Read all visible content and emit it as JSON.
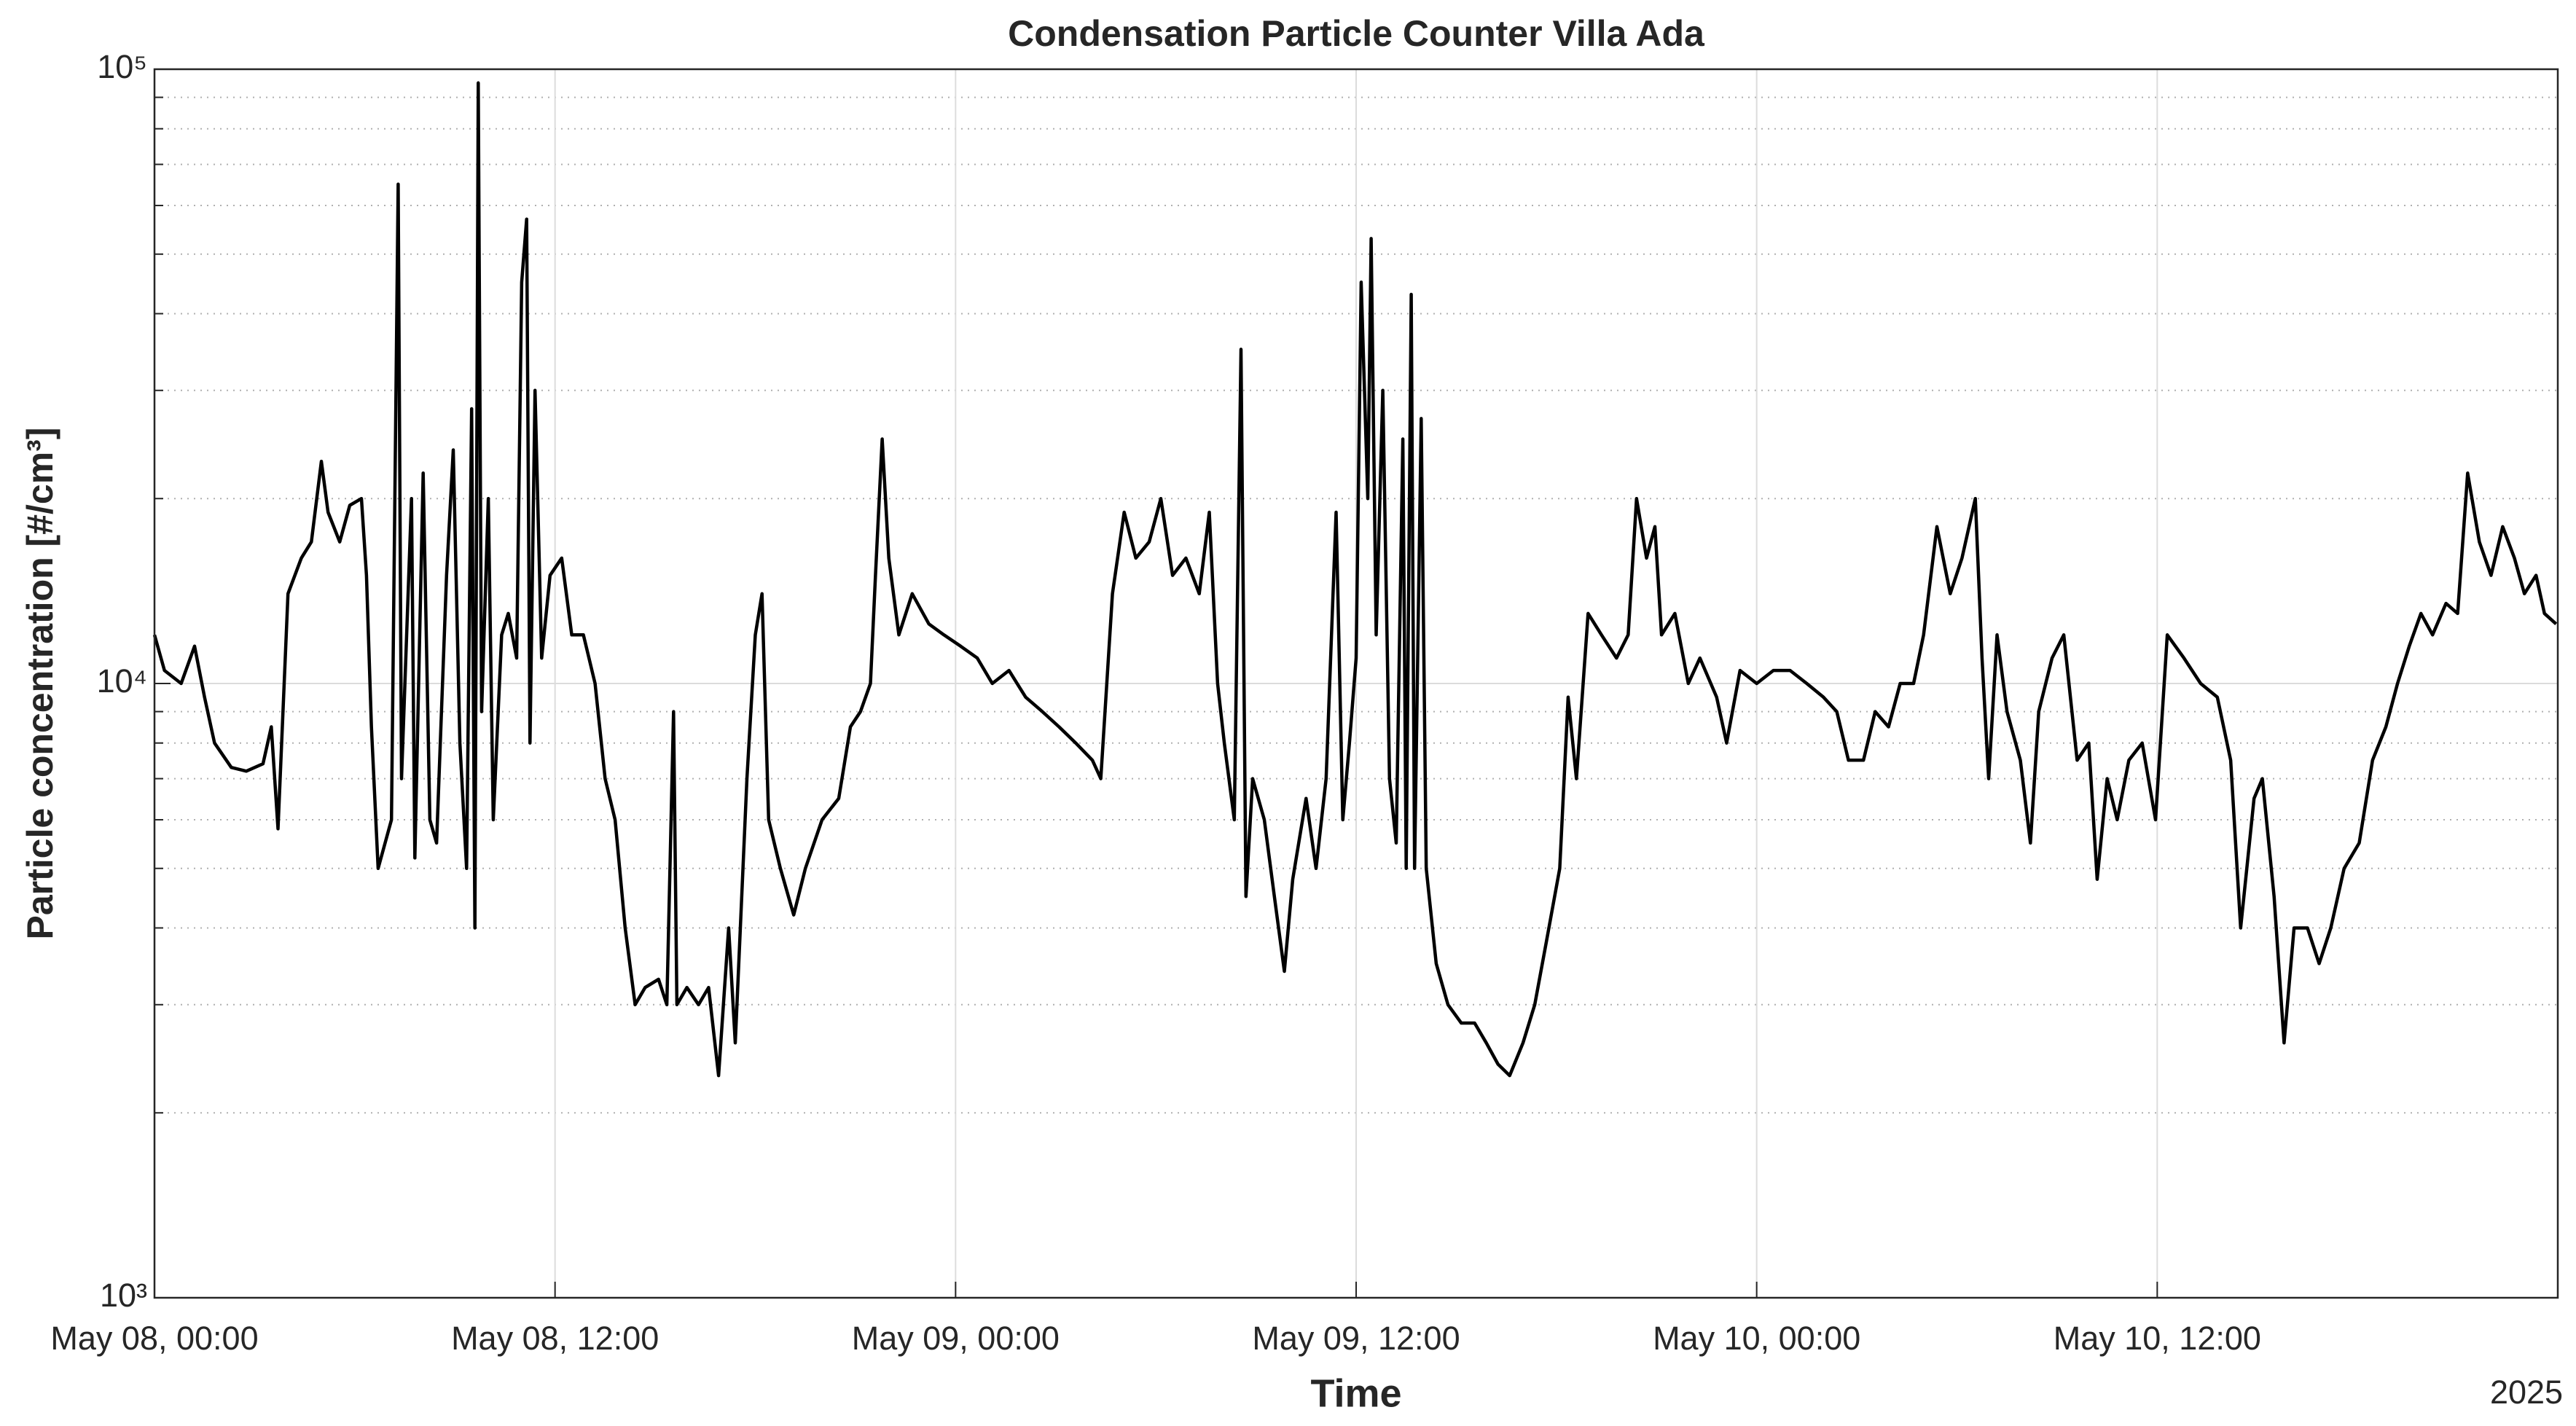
{
  "chart_data": {
    "type": "line",
    "title": "Condensation Particle Counter Villa Ada",
    "x_label": "Time",
    "y_label": "Particle concentration [#/cm³]",
    "x_year": "2025",
    "color": "#000000",
    "log_y": true,
    "grid": true,
    "minor_grid": true,
    "xlim": [
      "2025-05-08T00:00",
      "2025-05-11T00:00"
    ],
    "xticks": [
      {
        "value": "2025-05-08T00:00",
        "label": "May 08, 00:00"
      },
      {
        "value": "2025-05-08T12:00",
        "label": "May 08, 12:00"
      },
      {
        "value": "2025-05-09T00:00",
        "label": "May 09, 00:00"
      },
      {
        "value": "2025-05-09T12:00",
        "label": "May 09, 12:00"
      },
      {
        "value": "2025-05-10T00:00",
        "label": "May 10, 00:00"
      },
      {
        "value": "2025-05-10T12:00",
        "label": "May 10, 12:00"
      }
    ],
    "ylim": [
      1000,
      100000
    ],
    "yticks": [
      {
        "value": 1000,
        "label": "10³"
      },
      {
        "value": 10000,
        "label": "10⁴"
      },
      {
        "value": 100000,
        "label": "10⁵"
      }
    ],
    "x": [
      "2025-05-08T00:00",
      "2025-05-08T00:18",
      "2025-05-08T00:48",
      "2025-05-08T01:12",
      "2025-05-08T01:30",
      "2025-05-08T01:48",
      "2025-05-08T02:18",
      "2025-05-08T02:45",
      "2025-05-08T03:15",
      "2025-05-08T03:30",
      "2025-05-08T03:42",
      "2025-05-08T04:00",
      "2025-05-08T04:24",
      "2025-05-08T04:42",
      "2025-05-08T05:00",
      "2025-05-08T05:12",
      "2025-05-08T05:33",
      "2025-05-08T05:51",
      "2025-05-08T06:12",
      "2025-05-08T06:21",
      "2025-05-08T06:30",
      "2025-05-08T06:42",
      "2025-05-08T07:06",
      "2025-05-08T07:18",
      "2025-05-08T07:24",
      "2025-05-08T07:42",
      "2025-05-08T07:48",
      "2025-05-08T08:03",
      "2025-05-08T08:15",
      "2025-05-08T08:27",
      "2025-05-08T08:45",
      "2025-05-08T08:57",
      "2025-05-08T09:09",
      "2025-05-08T09:21",
      "2025-05-08T09:30",
      "2025-05-08T09:36",
      "2025-05-08T09:42",
      "2025-05-08T09:48",
      "2025-05-08T10:00",
      "2025-05-08T10:09",
      "2025-05-08T10:24",
      "2025-05-08T10:36",
      "2025-05-08T10:51",
      "2025-05-08T11:00",
      "2025-05-08T11:09",
      "2025-05-08T11:15",
      "2025-05-08T11:24",
      "2025-05-08T11:36",
      "2025-05-08T11:51",
      "2025-05-08T12:12",
      "2025-05-08T12:30",
      "2025-05-08T12:51",
      "2025-05-08T13:12",
      "2025-05-08T13:30",
      "2025-05-08T13:48",
      "2025-05-08T14:06",
      "2025-05-08T14:24",
      "2025-05-08T14:42",
      "2025-05-08T15:06",
      "2025-05-08T15:21",
      "2025-05-08T15:33",
      "2025-05-08T15:39",
      "2025-05-08T15:57",
      "2025-05-08T16:18",
      "2025-05-08T16:36",
      "2025-05-08T16:54",
      "2025-05-08T17:12",
      "2025-05-08T17:24",
      "2025-05-08T17:45",
      "2025-05-08T18:00",
      "2025-05-08T18:12",
      "2025-05-08T18:24",
      "2025-05-08T18:45",
      "2025-05-08T19:09",
      "2025-05-08T19:30",
      "2025-05-08T20:00",
      "2025-05-08T20:30",
      "2025-05-08T20:51",
      "2025-05-08T21:09",
      "2025-05-08T21:27",
      "2025-05-08T21:36",
      "2025-05-08T21:48",
      "2025-05-08T22:00",
      "2025-05-08T22:18",
      "2025-05-08T22:42",
      "2025-05-08T23:12",
      "2025-05-08T23:39",
      "2025-05-09T00:09",
      "2025-05-09T00:39",
      "2025-05-09T01:06",
      "2025-05-09T01:36",
      "2025-05-09T02:06",
      "2025-05-09T02:36",
      "2025-05-09T03:06",
      "2025-05-09T03:36",
      "2025-05-09T04:06",
      "2025-05-09T04:21",
      "2025-05-09T04:42",
      "2025-05-09T05:03",
      "2025-05-09T05:24",
      "2025-05-09T05:48",
      "2025-05-09T06:09",
      "2025-05-09T06:30",
      "2025-05-09T06:54",
      "2025-05-09T07:18",
      "2025-05-09T07:36",
      "2025-05-09T07:51",
      "2025-05-09T08:03",
      "2025-05-09T08:21",
      "2025-05-09T08:33",
      "2025-05-09T08:42",
      "2025-05-09T08:54",
      "2025-05-09T09:15",
      "2025-05-09T09:33",
      "2025-05-09T09:51",
      "2025-05-09T10:06",
      "2025-05-09T10:30",
      "2025-05-09T10:48",
      "2025-05-09T11:06",
      "2025-05-09T11:24",
      "2025-05-09T11:36",
      "2025-05-09T11:48",
      "2025-05-09T12:00",
      "2025-05-09T12:09",
      "2025-05-09T12:21",
      "2025-05-09T12:27",
      "2025-05-09T12:36",
      "2025-05-09T12:48",
      "2025-05-09T13:00",
      "2025-05-09T13:12",
      "2025-05-09T13:24",
      "2025-05-09T13:30",
      "2025-05-09T13:39",
      "2025-05-09T13:45",
      "2025-05-09T13:57",
      "2025-05-09T14:06",
      "2025-05-09T14:24",
      "2025-05-09T14:45",
      "2025-05-09T15:09",
      "2025-05-09T15:33",
      "2025-05-09T15:54",
      "2025-05-09T16:15",
      "2025-05-09T16:36",
      "2025-05-09T17:00",
      "2025-05-09T17:21",
      "2025-05-09T17:42",
      "2025-05-09T18:06",
      "2025-05-09T18:21",
      "2025-05-09T18:36",
      "2025-05-09T18:57",
      "2025-05-09T19:21",
      "2025-05-09T19:48",
      "2025-05-09T20:09",
      "2025-05-09T20:24",
      "2025-05-09T20:42",
      "2025-05-09T20:57",
      "2025-05-09T21:09",
      "2025-05-09T21:33",
      "2025-05-09T21:57",
      "2025-05-09T22:18",
      "2025-05-09T22:48",
      "2025-05-09T23:06",
      "2025-05-09T23:30",
      "2025-05-10T00:00",
      "2025-05-10T00:30",
      "2025-05-10T01:00",
      "2025-05-10T01:30",
      "2025-05-10T02:00",
      "2025-05-10T02:24",
      "2025-05-10T02:45",
      "2025-05-10T03:12",
      "2025-05-10T03:33",
      "2025-05-10T03:57",
      "2025-05-10T04:18",
      "2025-05-10T04:42",
      "2025-05-10T05:00",
      "2025-05-10T05:24",
      "2025-05-10T05:48",
      "2025-05-10T06:09",
      "2025-05-10T06:33",
      "2025-05-10T06:45",
      "2025-05-10T06:57",
      "2025-05-10T07:12",
      "2025-05-10T07:30",
      "2025-05-10T07:54",
      "2025-05-10T08:12",
      "2025-05-10T08:27",
      "2025-05-10T08:51",
      "2025-05-10T09:12",
      "2025-05-10T09:36",
      "2025-05-10T09:57",
      "2025-05-10T10:12",
      "2025-05-10T10:30",
      "2025-05-10T10:48",
      "2025-05-10T11:09",
      "2025-05-10T11:33",
      "2025-05-10T11:57",
      "2025-05-10T12:18",
      "2025-05-10T12:48",
      "2025-05-10T13:18",
      "2025-05-10T13:48",
      "2025-05-10T14:12",
      "2025-05-10T14:30",
      "2025-05-10T14:54",
      "2025-05-10T15:09",
      "2025-05-10T15:30",
      "2025-05-10T15:48",
      "2025-05-10T16:06",
      "2025-05-10T16:30",
      "2025-05-10T16:51",
      "2025-05-10T17:12",
      "2025-05-10T17:36",
      "2025-05-10T18:03",
      "2025-05-10T18:27",
      "2025-05-10T18:51",
      "2025-05-10T19:12",
      "2025-05-10T19:33",
      "2025-05-10T19:54",
      "2025-05-10T20:15",
      "2025-05-10T20:39",
      "2025-05-10T21:00",
      "2025-05-10T21:18",
      "2025-05-10T21:39",
      "2025-05-10T22:00",
      "2025-05-10T22:21",
      "2025-05-10T22:42",
      "2025-05-10T23:00",
      "2025-05-10T23:21",
      "2025-05-10T23:36",
      "2025-05-10T23:57"
    ],
    "values": [
      12000,
      10500,
      10000,
      11500,
      9500,
      8000,
      7300,
      7200,
      7400,
      8500,
      5800,
      14000,
      16000,
      17000,
      23000,
      19000,
      17000,
      19500,
      20000,
      15000,
      8500,
      5000,
      6000,
      65000,
      7000,
      20000,
      5200,
      22000,
      6000,
      5500,
      15000,
      24000,
      8000,
      5000,
      28000,
      4000,
      95000,
      9000,
      20000,
      6000,
      12000,
      13000,
      11000,
      45000,
      57000,
      8000,
      30000,
      11000,
      15000,
      16000,
      12000,
      12000,
      10000,
      7000,
      6000,
      4000,
      3000,
      3200,
      3300,
      3000,
      9000,
      3000,
      3200,
      3000,
      3200,
      2300,
      4000,
      2600,
      7000,
      12000,
      14000,
      6000,
      5000,
      4200,
      5000,
      6000,
      6500,
      8500,
      9000,
      10000,
      15000,
      25000,
      16000,
      12000,
      14000,
      12500,
      12000,
      11500,
      11000,
      10000,
      10500,
      9500,
      9000,
      8500,
      8000,
      7500,
      7000,
      14000,
      19000,
      16000,
      17000,
      20000,
      15000,
      16000,
      14000,
      19000,
      10000,
      8000,
      6000,
      35000,
      4500,
      7000,
      6000,
      4500,
      3400,
      4800,
      6500,
      5000,
      7000,
      19000,
      6000,
      8000,
      11000,
      45000,
      20000,
      53000,
      12000,
      30000,
      7000,
      5500,
      25000,
      5000,
      43000,
      5000,
      27000,
      5000,
      3500,
      3000,
      2800,
      2800,
      2600,
      2400,
      2300,
      2600,
      3000,
      3800,
      5000,
      9500,
      7000,
      13000,
      12000,
      11000,
      12000,
      20000,
      16000,
      18000,
      12000,
      13000,
      10000,
      11000,
      9500,
      8000,
      10500,
      10000,
      10500,
      10500,
      10000,
      9500,
      9000,
      7500,
      7500,
      9000,
      8500,
      10000,
      10000,
      12000,
      18000,
      14000,
      16000,
      20000,
      11000,
      7000,
      12000,
      9000,
      7500,
      5500,
      9000,
      11000,
      12000,
      7500,
      8000,
      4800,
      7000,
      6000,
      7500,
      8000,
      6000,
      12000,
      11000,
      10000,
      9500,
      7500,
      4000,
      6500,
      7000,
      4500,
      2600,
      4000,
      4000,
      3500,
      4000,
      5000,
      5500,
      7500,
      8500,
      10000,
      11500,
      13000,
      12000,
      13500,
      13000,
      22000,
      17000,
      15000,
      18000,
      16000,
      14000,
      15000,
      13000,
      12500
    ]
  }
}
